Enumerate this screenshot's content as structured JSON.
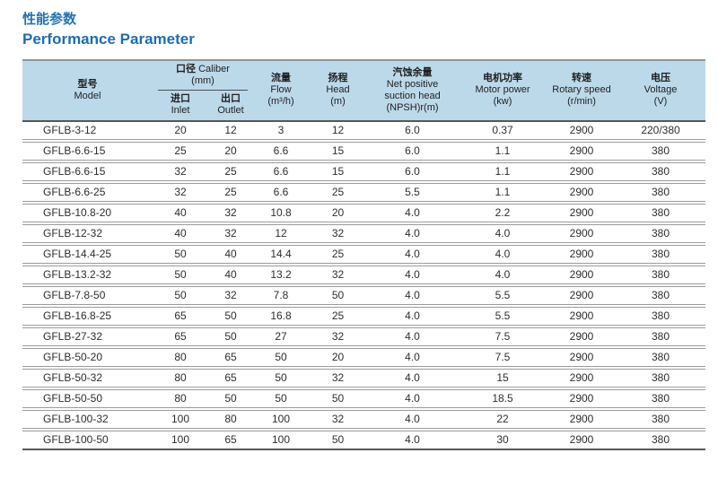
{
  "page": {
    "title_zh": "性能参数",
    "title_en": "Performance Parameter"
  },
  "theme": {
    "title_color": "#1d6dad",
    "header_bg": "#bcd9ea",
    "dark_rule": "#54585c",
    "row_rule": "#9b9b9b"
  },
  "table": {
    "headers": {
      "model": {
        "zh": "型号",
        "en": "Model"
      },
      "caliber": {
        "zh": "口径",
        "en": "Caliber",
        "unit": "(mm)"
      },
      "inlet": {
        "zh": "进口",
        "en": "Inlet"
      },
      "outlet": {
        "zh": "出口",
        "en": "Outlet"
      },
      "flow": {
        "zh": "流量",
        "en": "Flow\n(m³/h)"
      },
      "head": {
        "zh": "扬程",
        "en": "Head\n(m)"
      },
      "npsh": {
        "zh": "汽蚀余量",
        "en": "Net positive\nsuction head\n(NPSH)r(m)"
      },
      "motor_power": {
        "zh": "电机功率",
        "en": "Motor power\n(kw)"
      },
      "rotary_speed": {
        "zh": "转速",
        "en": "Rotary speed\n(r/min)"
      },
      "voltage": {
        "zh": "电压",
        "en": "Voltage\n(V)"
      }
    },
    "rows": [
      [
        "GFLB-3-12",
        "20",
        "12",
        "3",
        "12",
        "6.0",
        "0.37",
        "2900",
        "220/380"
      ],
      [
        "GFLB-6.6-15",
        "25",
        "20",
        "6.6",
        "15",
        "6.0",
        "1.1",
        "2900",
        "380"
      ],
      [
        "GFLB-6.6-15",
        "32",
        "25",
        "6.6",
        "15",
        "6.0",
        "1.1",
        "2900",
        "380"
      ],
      [
        "GFLB-6.6-25",
        "32",
        "25",
        "6.6",
        "25",
        "5.5",
        "1.1",
        "2900",
        "380"
      ],
      [
        "GFLB-10.8-20",
        "40",
        "32",
        "10.8",
        "20",
        "4.0",
        "2.2",
        "2900",
        "380"
      ],
      [
        "GFLB-12-32",
        "40",
        "32",
        "12",
        "32",
        "4.0",
        "4.0",
        "2900",
        "380"
      ],
      [
        "GFLB-14.4-25",
        "50",
        "40",
        "14.4",
        "25",
        "4.0",
        "4.0",
        "2900",
        "380"
      ],
      [
        "GFLB-13.2-32",
        "50",
        "40",
        "13.2",
        "32",
        "4.0",
        "4.0",
        "2900",
        "380"
      ],
      [
        "GFLB-7.8-50",
        "50",
        "32",
        "7.8",
        "50",
        "4.0",
        "5.5",
        "2900",
        "380"
      ],
      [
        "GFLB-16.8-25",
        "65",
        "50",
        "16.8",
        "25",
        "4.0",
        "5.5",
        "2900",
        "380"
      ],
      [
        "GFLB-27-32",
        "65",
        "50",
        "27",
        "32",
        "4.0",
        "7.5",
        "2900",
        "380"
      ],
      [
        "GFLB-50-20",
        "80",
        "65",
        "50",
        "20",
        "4.0",
        "7.5",
        "2900",
        "380"
      ],
      [
        "GFLB-50-32",
        "80",
        "65",
        "50",
        "32",
        "4.0",
        "15",
        "2900",
        "380"
      ],
      [
        "GFLB-50-50",
        "80",
        "50",
        "50",
        "50",
        "4.0",
        "18.5",
        "2900",
        "380"
      ],
      [
        "GFLB-100-32",
        "100",
        "80",
        "100",
        "32",
        "4.0",
        "22",
        "2900",
        "380"
      ],
      [
        "GFLB-100-50",
        "100",
        "65",
        "100",
        "50",
        "4.0",
        "30",
        "2900",
        "380"
      ]
    ]
  }
}
